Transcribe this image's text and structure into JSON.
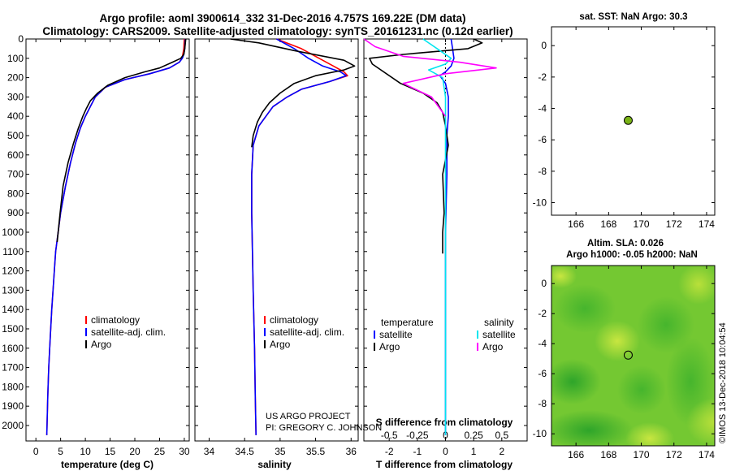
{
  "header": {
    "line1": "Argo profile: aoml 3900614_332 31-Dec-2016 4.757S 169.22E (DM data)",
    "line2": "Climatology: CARS2009. Satellite-adjusted climatology: synTS_20161231.nc (0.12d earlier)"
  },
  "colors": {
    "climatology": "#ff0000",
    "satellite": "#0000ff",
    "argo": "#000000",
    "t_satellite": "#0000ff",
    "s_satellite": "#00e5ee",
    "s_argo": "#ff00ff",
    "point": "#7ab317"
  },
  "credits": {
    "line1": "US ARGO PROJECT",
    "line2": "PI: GREGORY C. JOHNSON"
  },
  "timestamp": "©IMOS 13-Dec-2018 10:04:54",
  "chart_data": [
    {
      "id": "temp",
      "type": "line",
      "xlabel": "temperature (deg C)",
      "ylabel": "",
      "xlim": [
        -2,
        31
      ],
      "ylim": [
        2080,
        0
      ],
      "y_reversed": true,
      "xticks": [
        0,
        5,
        10,
        15,
        20,
        25,
        30
      ],
      "yticks": [
        0,
        100,
        200,
        300,
        400,
        500,
        600,
        700,
        800,
        900,
        1000,
        1100,
        1200,
        1300,
        1400,
        1500,
        1600,
        1700,
        1800,
        1900,
        2000
      ],
      "legend": [
        "climatology",
        "satellite-adj. clim.",
        "Argo"
      ],
      "series": [
        {
          "name": "climatology",
          "color": "#ff0000",
          "x": [
            30,
            29.9,
            29.7,
            29.5,
            29,
            27,
            23,
            18,
            14,
            12,
            11,
            10,
            9,
            8,
            7,
            6,
            5,
            4.5,
            4,
            3.6,
            3.2,
            2.9,
            2.6,
            2.4,
            2.2
          ],
          "y": [
            0,
            50,
            80,
            100,
            120,
            150,
            180,
            210,
            250,
            300,
            350,
            400,
            460,
            540,
            640,
            760,
            900,
            1000,
            1100,
            1250,
            1400,
            1550,
            1700,
            1850,
            2050
          ]
        },
        {
          "name": "satellite-adj. clim.",
          "color": "#0000ff",
          "x": [
            30.2,
            30.1,
            29.9,
            29.6,
            29,
            27,
            23,
            18,
            14,
            12,
            11,
            10,
            9,
            8,
            7,
            6,
            5,
            4.5,
            4,
            3.6,
            3.2,
            2.9,
            2.6,
            2.4,
            2.2
          ],
          "y": [
            0,
            50,
            80,
            100,
            120,
            150,
            180,
            210,
            250,
            300,
            350,
            400,
            460,
            540,
            640,
            760,
            900,
            1000,
            1100,
            1250,
            1400,
            1550,
            1700,
            1850,
            2050
          ]
        },
        {
          "name": "Argo",
          "color": "#000000",
          "x": [
            30.3,
            30.1,
            29.9,
            29.3,
            27.6,
            25,
            22,
            18,
            14.5,
            12.5,
            11,
            10.2,
            9.5,
            8.6,
            7.6,
            6.5,
            5.5,
            4.9,
            4.3
          ],
          "y": [
            0,
            50,
            80,
            100,
            120,
            150,
            170,
            200,
            240,
            280,
            320,
            360,
            400,
            460,
            540,
            640,
            760,
            900,
            1050
          ]
        }
      ]
    },
    {
      "id": "sal",
      "type": "line",
      "xlabel": "salinity",
      "ylabel": "",
      "xlim": [
        33.8,
        36.1
      ],
      "ylim": [
        2080,
        0
      ],
      "y_reversed": true,
      "xticks": [
        34,
        34.5,
        35,
        35.5,
        36
      ],
      "legend": [
        "climatology",
        "satellite-adj. clim.",
        "Argo"
      ],
      "series": [
        {
          "name": "climatology",
          "color": "#ff0000",
          "x": [
            34.95,
            35.3,
            35.55,
            35.75,
            35.9,
            35.95,
            35.7,
            35.3,
            35.1,
            34.9,
            34.8,
            34.7,
            34.62,
            34.6,
            34.6,
            34.61,
            34.62,
            34.64,
            34.65,
            34.66
          ],
          "y": [
            0,
            50,
            100,
            140,
            170,
            190,
            220,
            260,
            300,
            350,
            400,
            450,
            550,
            700,
            900,
            1100,
            1300,
            1600,
            1850,
            2050
          ]
        },
        {
          "name": "satellite-adj. clim.",
          "color": "#0000ff",
          "x": [
            34.95,
            35.2,
            35.4,
            35.6,
            35.85,
            35.93,
            35.7,
            35.3,
            35.1,
            34.9,
            34.8,
            34.7,
            34.62,
            34.6,
            34.6,
            34.61,
            34.62,
            34.64,
            34.65,
            34.66
          ],
          "y": [
            0,
            50,
            100,
            140,
            170,
            190,
            220,
            260,
            300,
            350,
            400,
            450,
            550,
            700,
            900,
            1100,
            1300,
            1600,
            1850,
            2050
          ]
        },
        {
          "name": "Argo",
          "color": "#000000",
          "x": [
            34.3,
            34.7,
            35.2,
            35.9,
            36.05,
            35.9,
            35.5,
            35.2,
            35.0,
            34.85,
            34.75,
            34.68,
            34.62,
            34.6
          ],
          "y": [
            0,
            20,
            60,
            110,
            140,
            160,
            190,
            230,
            280,
            330,
            380,
            430,
            500,
            560
          ]
        }
      ]
    },
    {
      "id": "diff",
      "type": "line",
      "xlabel": "T difference from climatology",
      "xlabel2": "S difference from climatology",
      "xlim": [
        -2.9,
        2.9
      ],
      "ylim": [
        2080,
        0
      ],
      "y_reversed": true,
      "xticks": [
        -2,
        -1,
        0,
        1,
        2
      ],
      "x2_tick_labels": [
        "-0.5",
        "-0.25",
        "0",
        "0.25",
        "0.5"
      ],
      "legend_left_title": "temperature",
      "legend_right_title": "salinity",
      "legend_left": [
        "satellite",
        "Argo"
      ],
      "legend_right": [
        "satellite",
        "Argo"
      ],
      "series": [
        {
          "name": "T satellite",
          "color": "#0000ff",
          "x": [
            0.2,
            0.25,
            0.3,
            0.2,
            0,
            -0.2,
            0,
            0.1,
            0.1,
            0.05,
            0.05,
            0,
            0,
            0
          ],
          "y": [
            0,
            50,
            100,
            140,
            170,
            190,
            230,
            300,
            400,
            500,
            700,
            1000,
            1500,
            2050
          ]
        },
        {
          "name": "T Argo",
          "color": "#000000",
          "x": [
            1.0,
            1.3,
            0.8,
            -1.5,
            -2.7,
            -2.6,
            -1.6,
            -0.8,
            -0.3,
            -0.1,
            0,
            0.1,
            -0.1,
            -0.05,
            -0.1,
            -0.1
          ],
          "y": [
            0,
            20,
            50,
            80,
            100,
            130,
            230,
            280,
            330,
            380,
            450,
            550,
            700,
            900,
            1000,
            1110
          ]
        },
        {
          "name": "S satellite",
          "color": "#00e5ee",
          "x": [
            -0.8,
            -0.5,
            -0.2,
            0.2,
            0,
            -0.6,
            -0.1,
            0,
            0,
            0,
            0,
            0
          ],
          "y": [
            0,
            30,
            60,
            100,
            130,
            160,
            200,
            300,
            500,
            900,
            1500,
            2050
          ]
        },
        {
          "name": "S Argo",
          "color": "#ff00ff",
          "x": [
            -2.9,
            -2.5,
            -1.5,
            0.5,
            1.8,
            0,
            -1.5,
            -0.5,
            0
          ],
          "y": [
            0,
            40,
            90,
            120,
            150,
            180,
            230,
            300,
            400
          ]
        }
      ]
    },
    {
      "id": "sst",
      "type": "scatter",
      "title": "sat. SST: NaN Argo: 30.3",
      "xlim": [
        164.5,
        174.5
      ],
      "ylim": [
        -10.8,
        1.2
      ],
      "xticks": [
        166,
        168,
        170,
        172,
        174
      ],
      "yticks": [
        0,
        -2,
        -4,
        -6,
        -8,
        -10
      ],
      "points": [
        {
          "x": 169.2,
          "y": -4.76
        }
      ]
    },
    {
      "id": "sla",
      "type": "heatmap",
      "title": "Altim. SLA: 0.026",
      "subtitle": "Argo h1000: -0.05 h2000: NaN",
      "xlim": [
        164.5,
        174.5
      ],
      "ylim": [
        -10.8,
        1.2
      ],
      "xticks": [
        166,
        168,
        170,
        172,
        174
      ],
      "yticks": [
        0,
        -2,
        -4,
        -6,
        -8,
        -10
      ],
      "points": [
        {
          "x": 169.2,
          "y": -4.76
        }
      ]
    }
  ]
}
